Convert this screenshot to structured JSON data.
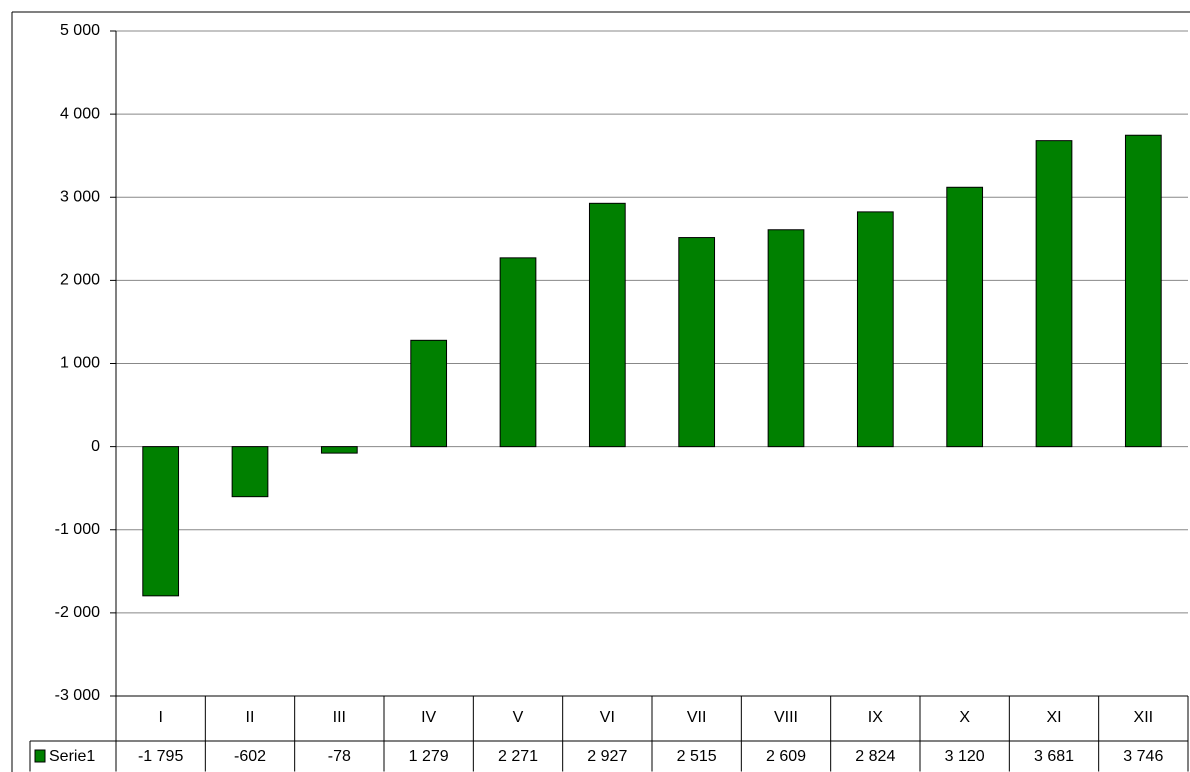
{
  "chart_data": {
    "type": "bar",
    "categories": [
      "I",
      "II",
      "III",
      "IV",
      "V",
      "VI",
      "VII",
      "VIII",
      "IX",
      "X",
      "XI",
      "XII"
    ],
    "series": [
      {
        "name": "Serie1",
        "color": "#008000",
        "values": [
          -1795,
          -602,
          -78,
          1279,
          2271,
          2927,
          2515,
          2609,
          2824,
          3120,
          3681,
          3746
        ],
        "value_labels": [
          "-1 795",
          "-602",
          "-78",
          "1 279",
          "2 271",
          "2 927",
          "2 515",
          "2 609",
          "2 824",
          "3 120",
          "3 681",
          "3 746"
        ]
      }
    ],
    "ylim": [
      -3000,
      5000
    ],
    "yticks": [
      {
        "value": -3000,
        "label": "-3 000"
      },
      {
        "value": -2000,
        "label": "-2 000"
      },
      {
        "value": -1000,
        "label": "-1 000"
      },
      0,
      {
        "value": 1000,
        "label": "1 000"
      },
      {
        "value": 2000,
        "label": "2 000"
      },
      {
        "value": 3000,
        "label": "3 000"
      },
      {
        "value": 4000,
        "label": "4 000"
      },
      {
        "value": 5000,
        "label": "5 000"
      }
    ],
    "grid": true
  }
}
